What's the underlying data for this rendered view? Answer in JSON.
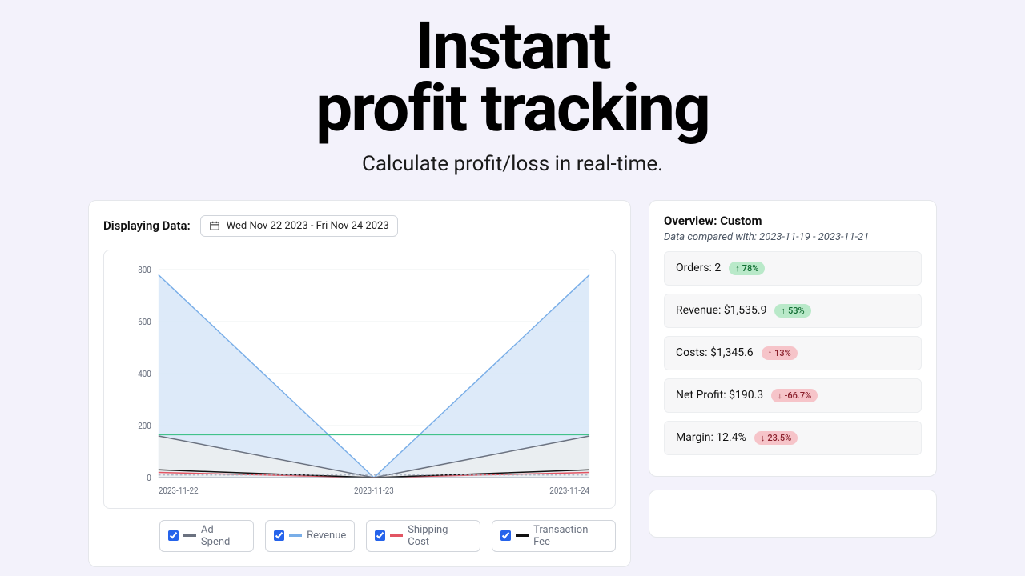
{
  "hero": {
    "title_line1": "Instant",
    "title_line2": "profit tracking",
    "subtitle": "Calculate profit/loss in real-time."
  },
  "header": {
    "displaying_label": "Displaying Data:",
    "date_range": "Wed Nov 22 2023 - Fri Nov 24 2023"
  },
  "chart": {
    "type": "area",
    "xlabels": [
      "2023-11-22",
      "2023-11-23",
      "2023-11-24"
    ],
    "ylim": [
      0,
      800
    ],
    "ytick_step": 200,
    "background_color": "#ffffff",
    "grid_color": "#eef0f2",
    "axis_text_color": "#6b7280",
    "series": {
      "revenue": {
        "color": "#79aee8",
        "fill": "#d9e8f8",
        "values": [
          780,
          0,
          780
        ]
      },
      "ad_spend": {
        "color": "#6b7280",
        "fill": "#eceef0",
        "values": [
          160,
          0,
          160
        ]
      },
      "shipping_cost": {
        "color": "#e25563",
        "fill": "none",
        "values": [
          20,
          0,
          20
        ]
      },
      "transaction_fee": {
        "color": "#111111",
        "fill": "none",
        "values": [
          30,
          0,
          30
        ]
      },
      "green_line": {
        "color": "#42c28a",
        "fill": "none",
        "values": [
          165,
          165,
          165
        ]
      },
      "dotted": {
        "color": "#a7b0c0",
        "fill": "none",
        "values": [
          10,
          10,
          10
        ],
        "dash": true
      }
    }
  },
  "legend": {
    "items": [
      {
        "key": "ad_spend",
        "label": "Ad Spend",
        "checked": true,
        "color": "#6b7280"
      },
      {
        "key": "revenue",
        "label": "Revenue",
        "checked": true,
        "color": "#79aee8"
      },
      {
        "key": "shipping_cost",
        "label": "Shipping Cost",
        "checked": true,
        "color": "#e25563"
      },
      {
        "key": "transaction_fee",
        "label": "Transaction Fee",
        "checked": true,
        "color": "#111111"
      }
    ]
  },
  "overview": {
    "title": "Overview: Custom",
    "subtitle": "Data compared with: 2023-11-19 - 2023-11-21",
    "stats": [
      {
        "label": "Orders: 2",
        "change": "78%",
        "dir": "up",
        "tone": "green"
      },
      {
        "label": "Revenue: $1,535.9",
        "change": "53%",
        "dir": "up",
        "tone": "green"
      },
      {
        "label": "Costs: $1,345.6",
        "change": "13%",
        "dir": "up",
        "tone": "red"
      },
      {
        "label": "Net Profit: $190.3",
        "change": "-66.7%",
        "dir": "down",
        "tone": "red"
      },
      {
        "label": "Margin: 12.4%",
        "change": "23.5%",
        "dir": "down",
        "tone": "red"
      }
    ]
  }
}
